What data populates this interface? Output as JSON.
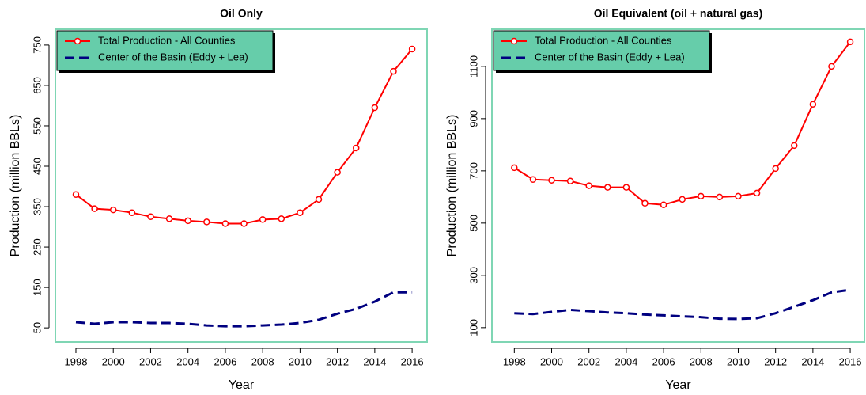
{
  "chart_data": [
    {
      "type": "line",
      "title": "Oil Only",
      "xlabel": "Year",
      "ylabel": "Production (million BBLs)",
      "x": [
        1998,
        1999,
        2000,
        2001,
        2002,
        2003,
        2004,
        2005,
        2006,
        2007,
        2008,
        2009,
        2010,
        2011,
        2012,
        2013,
        2014,
        2015,
        2016
      ],
      "series": [
        {
          "name": "Total Production - All Counties",
          "color": "#ff0000",
          "linestyle": "solid",
          "marker": "circle",
          "values": [
            380,
            345,
            342,
            335,
            325,
            320,
            315,
            312,
            308,
            308,
            318,
            320,
            335,
            368,
            435,
            495,
            595,
            685,
            740
          ]
        },
        {
          "name": "Center of the Basin (Eddy + Lea)",
          "color": "#000080",
          "linestyle": "dashed",
          "values": [
            64,
            60,
            64,
            64,
            62,
            62,
            60,
            56,
            54,
            54,
            56,
            58,
            62,
            70,
            85,
            97,
            115,
            138,
            138
          ]
        }
      ],
      "xlim": [
        1996.9,
        2016.8
      ],
      "xticks": [
        1998,
        2000,
        2002,
        2004,
        2006,
        2008,
        2010,
        2012,
        2014,
        2016
      ],
      "ylim": [
        15,
        789
      ],
      "yticks": [
        50,
        150,
        250,
        350,
        450,
        550,
        650,
        750
      ],
      "legend": "top-left",
      "legend_color": "#66cdaa",
      "frame_color": "#7fd6b4"
    },
    {
      "type": "line",
      "title": "Oil Equivalent (oil + natural gas)",
      "xlabel": "Year",
      "ylabel": "Production (million BBLs)",
      "x": [
        1998,
        1999,
        2000,
        2001,
        2002,
        2003,
        2004,
        2005,
        2006,
        2007,
        2008,
        2009,
        2010,
        2011,
        2012,
        2013,
        2014,
        2015,
        2016
      ],
      "series": [
        {
          "name": "Total Production - All Counties",
          "color": "#ff0000",
          "linestyle": "solid",
          "marker": "circle",
          "values": [
            712,
            667,
            664,
            661,
            643,
            637,
            637,
            576,
            570,
            591,
            603,
            600,
            603,
            615,
            709,
            797,
            955,
            1100,
            1194
          ]
        },
        {
          "name": "Center of the Basin (Eddy + Lea)",
          "color": "#000080",
          "linestyle": "dashed",
          "values": [
            155,
            152,
            160,
            168,
            163,
            158,
            155,
            150,
            147,
            143,
            140,
            134,
            133,
            136,
            155,
            180,
            205,
            235,
            245
          ]
        }
      ],
      "xlim": [
        1996.8,
        2016.76
      ],
      "xticks": [
        1998,
        2000,
        2002,
        2004,
        2006,
        2008,
        2010,
        2012,
        2014,
        2016
      ],
      "ylim": [
        45,
        1242
      ],
      "yticks": [
        100,
        300,
        500,
        700,
        900,
        1100
      ],
      "legend": "top-left",
      "legend_color": "#66cdaa",
      "frame_color": "#7fd6b4"
    }
  ]
}
